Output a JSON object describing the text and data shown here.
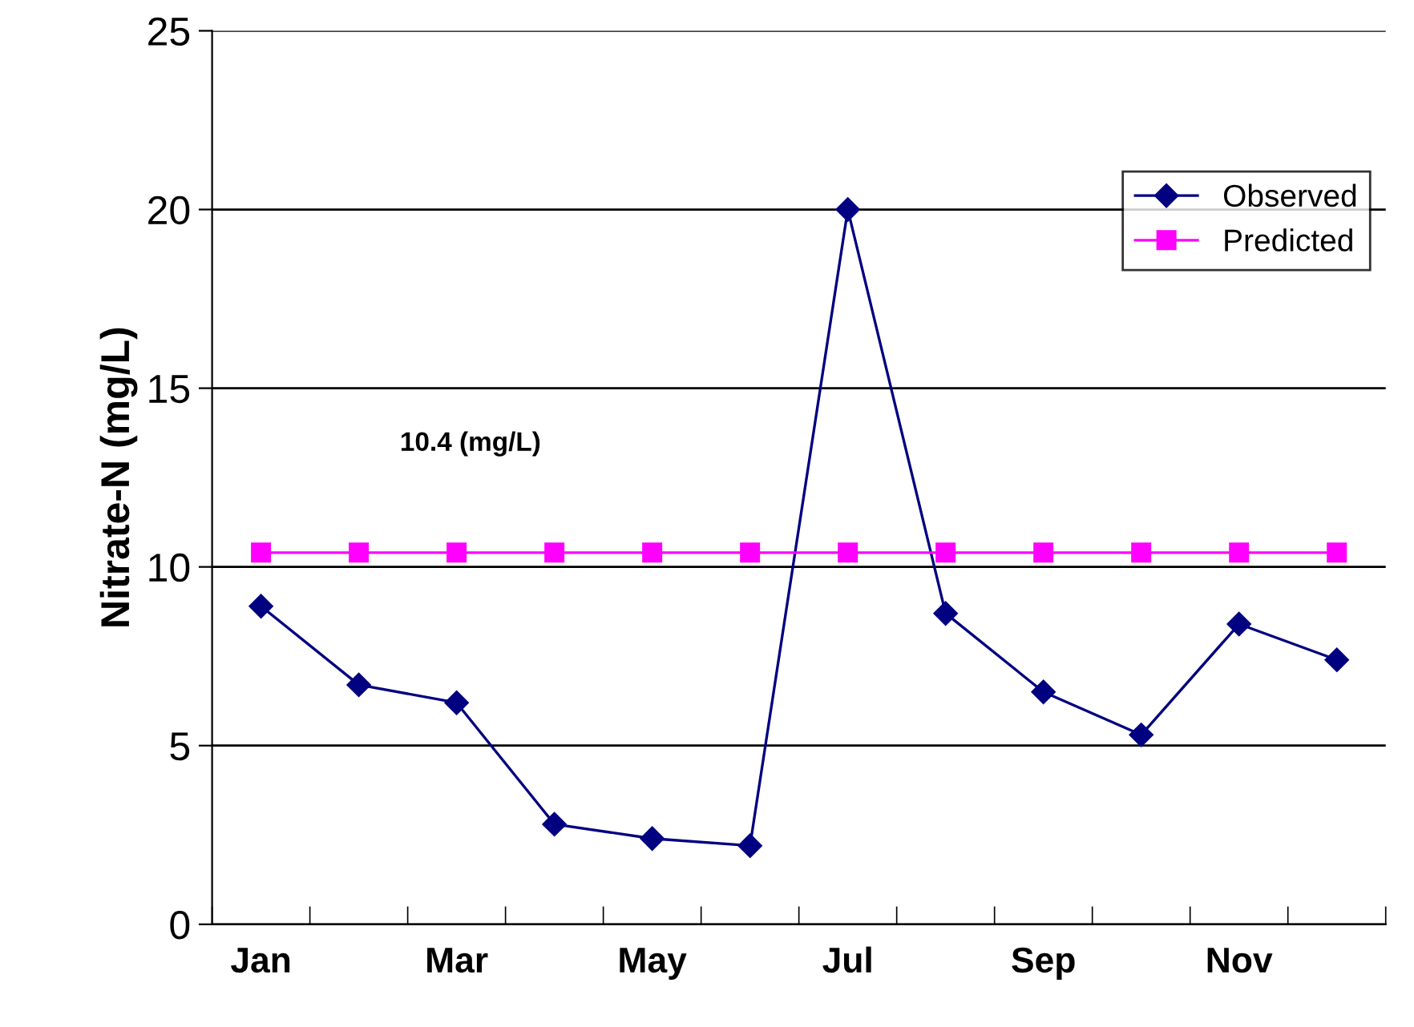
{
  "chart_data": {
    "type": "line",
    "ylabel": "Nitrate-N (mg/L)",
    "categories": [
      "Jan",
      null,
      "Mar",
      null,
      "May",
      null,
      "Jul",
      null,
      "Sep",
      null,
      "Nov",
      null
    ],
    "series": [
      {
        "name": "Observed",
        "color": "#000080",
        "marker": "diamond",
        "values": [
          8.9,
          6.7,
          6.2,
          2.8,
          2.4,
          2.2,
          20,
          8.7,
          6.5,
          5.3,
          8.4,
          7.4
        ]
      },
      {
        "name": "Predicted",
        "color": "#ff00ff",
        "marker": "square",
        "values": [
          10.4,
          10.4,
          10.4,
          10.4,
          10.4,
          10.4,
          10.4,
          10.4,
          10.4,
          10.4,
          10.4,
          10.4
        ]
      }
    ],
    "annotations": [
      "10.4 (mg/L)"
    ],
    "ylim": [
      0,
      25
    ],
    "yticks": [
      0,
      5,
      10,
      15,
      20,
      25
    ],
    "grid": "y",
    "legend": "top right",
    "line_style": "solid"
  }
}
